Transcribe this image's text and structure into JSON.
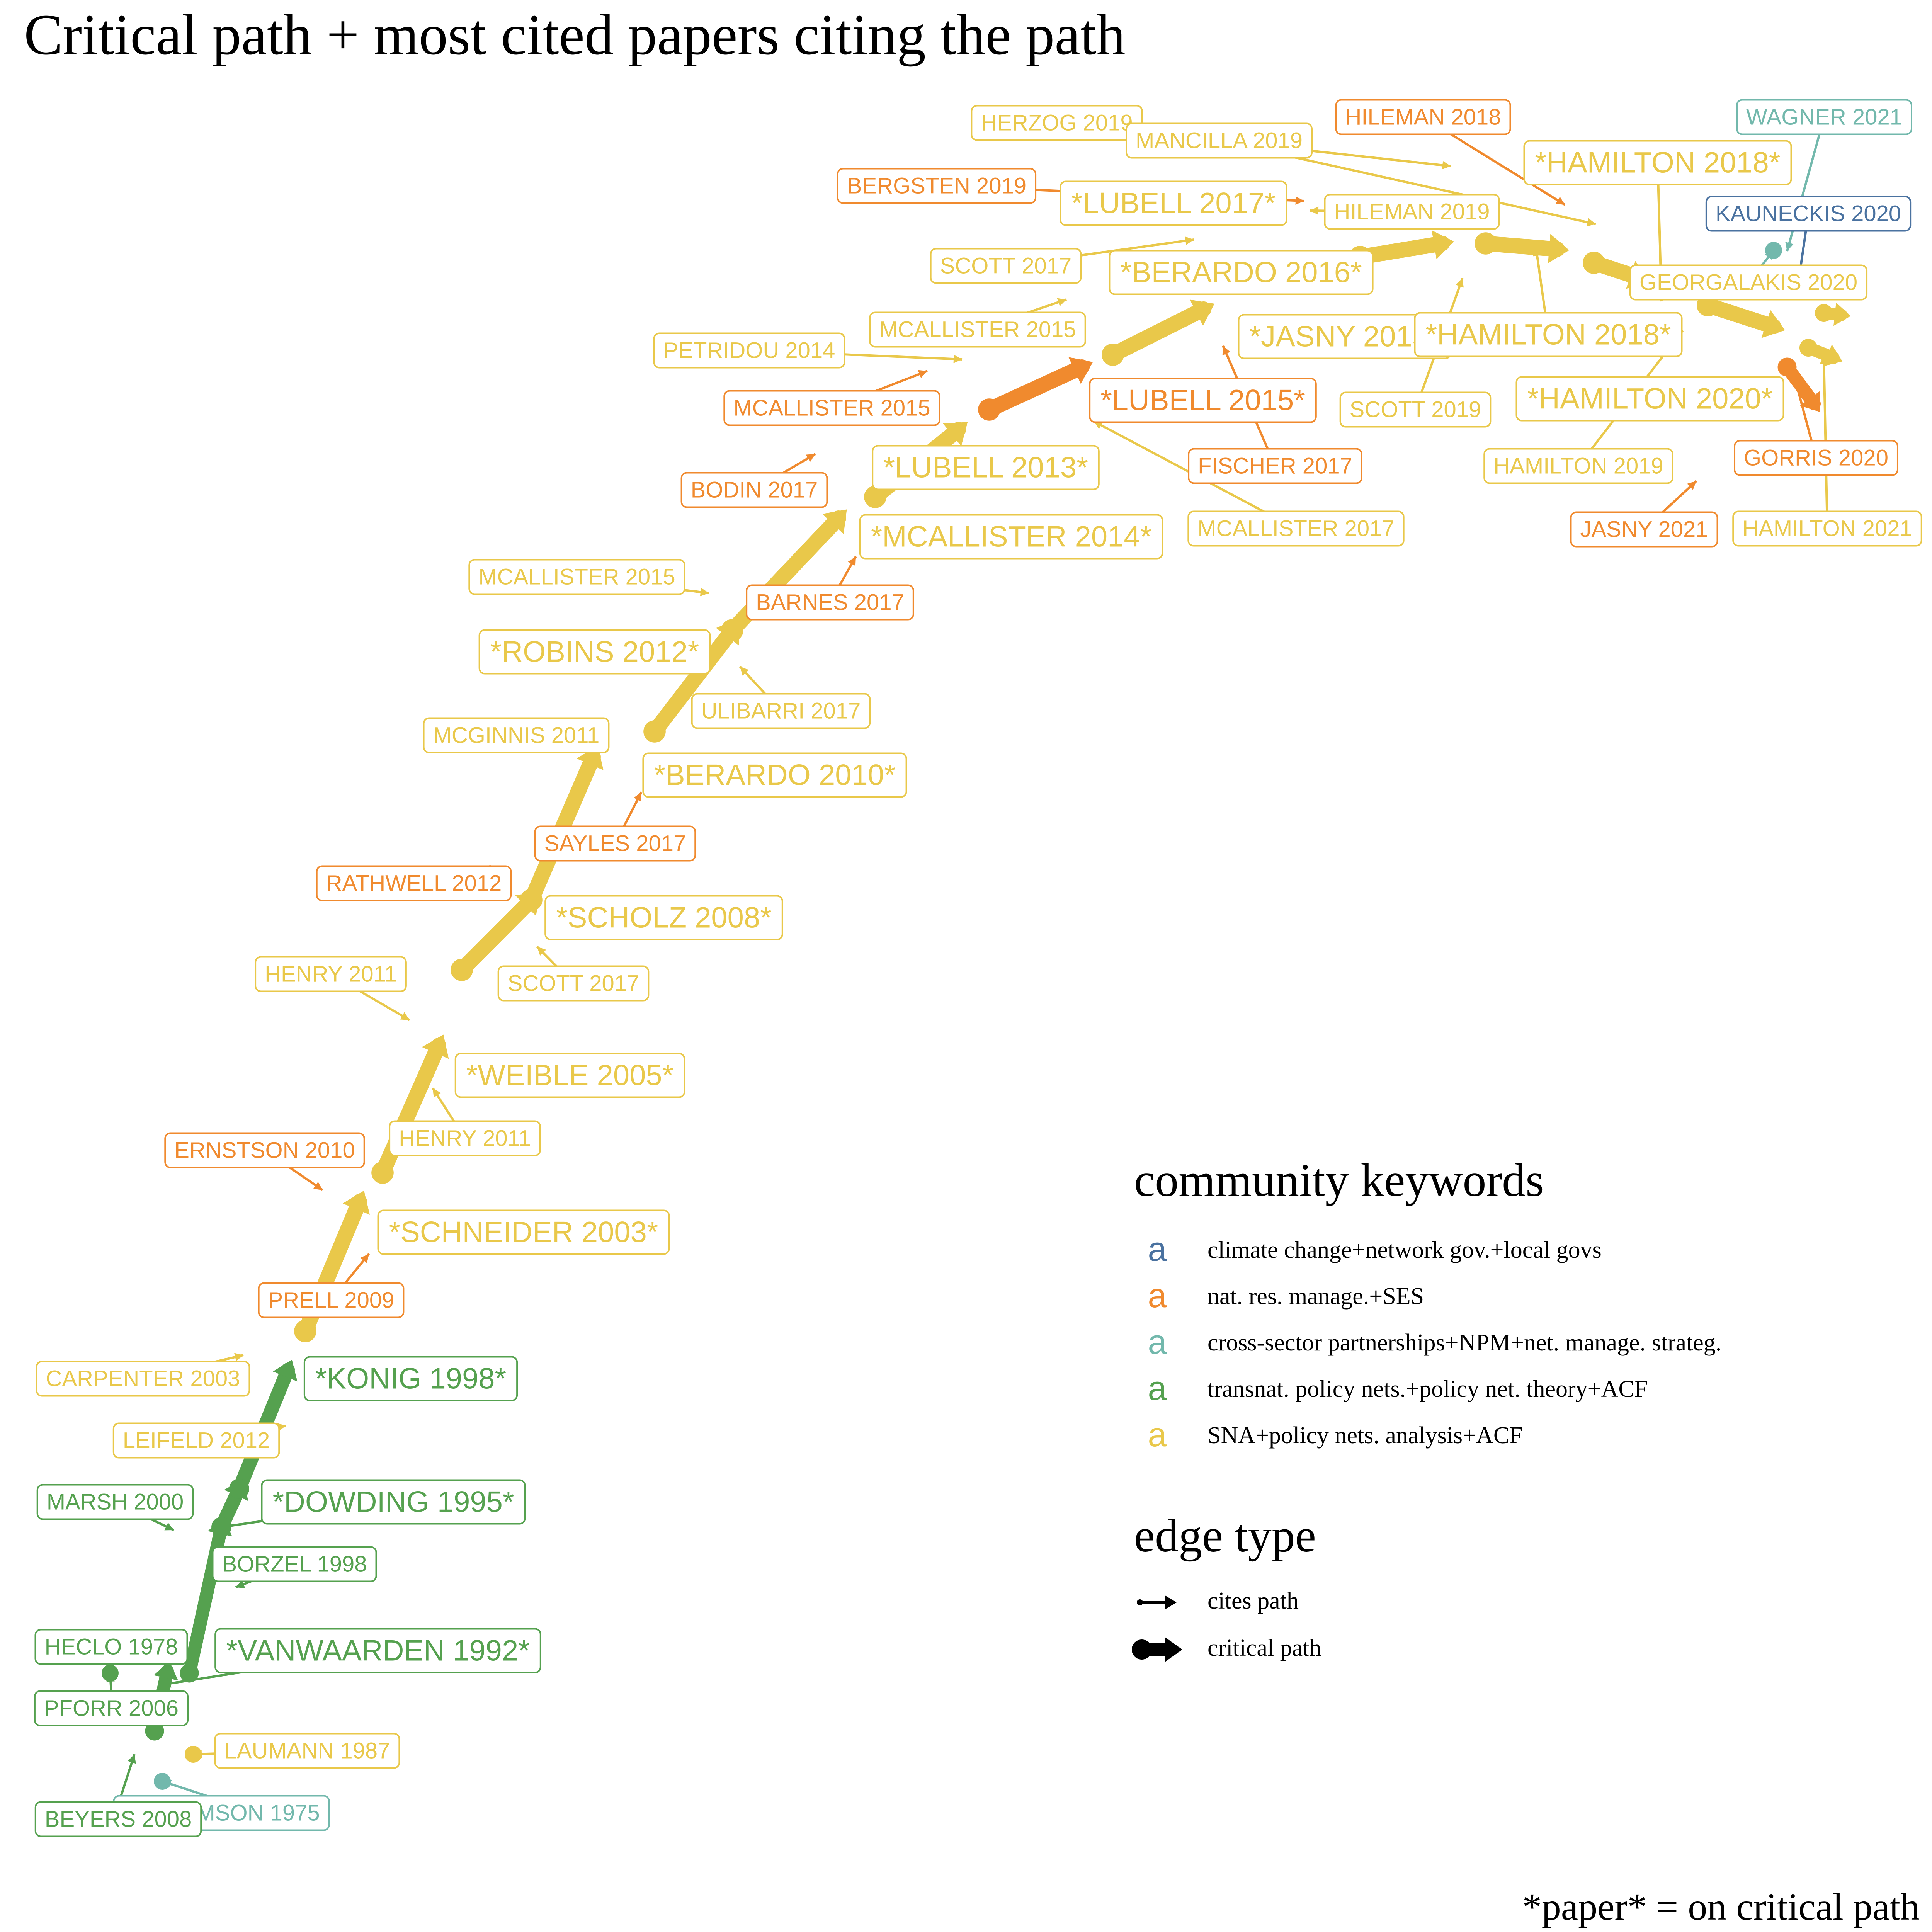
{
  "title": "Critical path + most cited papers citing the path",
  "footnote": "*paper* = on critical path",
  "colors": {
    "climate": "#4a72a0",
    "natres": "#f08a2e",
    "cross": "#72b8ac",
    "transnat": "#55a14f",
    "sna": "#e9c84a"
  },
  "legend": {
    "community_title": "community keywords",
    "community_items": [
      {
        "glyph": "a",
        "label": "climate change+network gov.+local govs",
        "color": "climate"
      },
      {
        "glyph": "a",
        "label": "nat. res. manage.+SES",
        "color": "natres"
      },
      {
        "glyph": "a",
        "label": "cross-sector partnerships+NPM+net. manage. strateg.",
        "color": "cross"
      },
      {
        "glyph": "a",
        "label": "transnat. policy nets.+policy net. theory+ACF",
        "color": "transnat"
      },
      {
        "glyph": "a",
        "label": "SNA+policy nets. analysis+ACF",
        "color": "sna"
      }
    ],
    "edge_title": "edge type",
    "edge_items": [
      {
        "label": "cites path",
        "type": "cites"
      },
      {
        "label": "critical path",
        "type": "critical"
      }
    ]
  },
  "nodes": [
    {
      "id": "williamson1975",
      "label": "WILLIAMSON 1975",
      "community": "cross",
      "critical": false
    },
    {
      "id": "beyers2008",
      "label": "BEYERS 2008",
      "community": "transnat",
      "critical": false
    },
    {
      "id": "laumann1987",
      "label": "LAUMANN 1987",
      "community": "sna",
      "critical": false
    },
    {
      "id": "pforr2006",
      "label": "PFORR 2006",
      "community": "transnat",
      "critical": false
    },
    {
      "id": "heclo1978",
      "label": "HECLO 1978",
      "community": "transnat",
      "critical": false
    },
    {
      "id": "vanwaarden1992",
      "label": "*VANWAARDEN 1992*",
      "community": "transnat",
      "critical": true
    },
    {
      "id": "borzel1998",
      "label": "BORZEL 1998",
      "community": "transnat",
      "critical": false
    },
    {
      "id": "marsh2000",
      "label": "MARSH 2000",
      "community": "transnat",
      "critical": false
    },
    {
      "id": "dowding1995",
      "label": "*DOWDING 1995*",
      "community": "transnat",
      "critical": true
    },
    {
      "id": "leifeld2012",
      "label": "LEIFELD 2012",
      "community": "sna",
      "critical": false
    },
    {
      "id": "carpenter2003",
      "label": "CARPENTER 2003",
      "community": "sna",
      "critical": false
    },
    {
      "id": "konig1998",
      "label": "*KONIG 1998*",
      "community": "transnat",
      "critical": true
    },
    {
      "id": "prell2009",
      "label": "PRELL 2009",
      "community": "natres",
      "critical": false
    },
    {
      "id": "schneider2003",
      "label": "*SCHNEIDER 2003*",
      "community": "sna",
      "critical": true
    },
    {
      "id": "ernstson2010",
      "label": "ERNSTSON 2010",
      "community": "natres",
      "critical": false
    },
    {
      "id": "henry2011b",
      "label": "HENRY 2011",
      "community": "sna",
      "critical": false
    },
    {
      "id": "weible2005",
      "label": "*WEIBLE 2005*",
      "community": "sna",
      "critical": true
    },
    {
      "id": "henry2011a",
      "label": "HENRY 2011",
      "community": "sna",
      "critical": false
    },
    {
      "id": "scott2017a",
      "label": "SCOTT 2017",
      "community": "sna",
      "critical": false
    },
    {
      "id": "scholz2008",
      "label": "*SCHOLZ 2008*",
      "community": "sna",
      "critical": true
    },
    {
      "id": "rathwell2012",
      "label": "RATHWELL 2012",
      "community": "natres",
      "critical": false
    },
    {
      "id": "sayles2017",
      "label": "SAYLES 2017",
      "community": "natres",
      "critical": false
    },
    {
      "id": "berardo2010",
      "label": "*BERARDO 2010*",
      "community": "sna",
      "critical": true
    },
    {
      "id": "mcginnis2011",
      "label": "MCGINNIS 2011",
      "community": "sna",
      "critical": false
    },
    {
      "id": "ulibarri2017",
      "label": "ULIBARRI 2017",
      "community": "sna",
      "critical": false
    },
    {
      "id": "robins2012",
      "label": "*ROBINS 2012*",
      "community": "sna",
      "critical": true
    },
    {
      "id": "barnes2017",
      "label": "BARNES 2017",
      "community": "natres",
      "critical": false
    },
    {
      "id": "mcallister2015c",
      "label": "MCALLISTER 2015",
      "community": "sna",
      "critical": false
    },
    {
      "id": "mcallister2014",
      "label": "*MCALLISTER 2014*",
      "community": "sna",
      "critical": true
    },
    {
      "id": "bodin2017",
      "label": "BODIN 2017",
      "community": "natres",
      "critical": false
    },
    {
      "id": "lubell2013",
      "label": "*LUBELL 2013*",
      "community": "sna",
      "critical": true
    },
    {
      "id": "mcallister2017",
      "label": "MCALLISTER 2017",
      "community": "sna",
      "critical": false
    },
    {
      "id": "mcallister2015b",
      "label": "MCALLISTER 2015",
      "community": "natres",
      "critical": false
    },
    {
      "id": "petridou2014",
      "label": "PETRIDOU 2014",
      "community": "sna",
      "critical": false
    },
    {
      "id": "mcallister2015a",
      "label": "MCALLISTER 2015",
      "community": "sna",
      "critical": false
    },
    {
      "id": "lubell2015",
      "label": "*LUBELL 2015*",
      "community": "natres",
      "critical": true
    },
    {
      "id": "fischer2017",
      "label": "FISCHER 2017",
      "community": "natres",
      "critical": false
    },
    {
      "id": "scott2017b",
      "label": "SCOTT 2017",
      "community": "sna",
      "critical": false
    },
    {
      "id": "berardo2016",
      "label": "*BERARDO 2016*",
      "community": "sna",
      "critical": true
    },
    {
      "id": "jasny2015",
      "label": "*JASNY 2015*",
      "community": "sna",
      "critical": true
    },
    {
      "id": "scott2019",
      "label": "SCOTT 2019",
      "community": "sna",
      "critical": false
    },
    {
      "id": "bergsten2019",
      "label": "BERGSTEN 2019",
      "community": "natres",
      "critical": false
    },
    {
      "id": "lubell2017",
      "label": "*LUBELL 2017*",
      "community": "sna",
      "critical": true
    },
    {
      "id": "herzog2019",
      "label": "HERZOG 2019",
      "community": "sna",
      "critical": false
    },
    {
      "id": "mancilla2019",
      "label": "MANCILLA 2019",
      "community": "sna",
      "critical": false
    },
    {
      "id": "hileman2019",
      "label": "HILEMAN 2019",
      "community": "sna",
      "critical": false
    },
    {
      "id": "hileman2018",
      "label": "HILEMAN 2018",
      "community": "natres",
      "critical": false
    },
    {
      "id": "hamilton2018a",
      "label": "*HAMILTON 2018*",
      "community": "sna",
      "critical": true
    },
    {
      "id": "hamilton2018b",
      "label": "*HAMILTON 2018*",
      "community": "sna",
      "critical": true
    },
    {
      "id": "hamilton2019",
      "label": "HAMILTON 2019",
      "community": "sna",
      "critical": false
    },
    {
      "id": "hamilton2020",
      "label": "*HAMILTON 2020*",
      "community": "sna",
      "critical": true
    },
    {
      "id": "georgalakis2020",
      "label": "GEORGALAKIS 2020",
      "community": "sna",
      "critical": false
    },
    {
      "id": "wagner2021",
      "label": "WAGNER 2021",
      "community": "cross",
      "critical": false
    },
    {
      "id": "kauneckis2020",
      "label": "KAUNECKIS 2020",
      "community": "climate",
      "critical": false
    },
    {
      "id": "gorris2020",
      "label": "GORRIS 2020",
      "community": "natres",
      "critical": false
    },
    {
      "id": "jasny2021",
      "label": "JASNY 2021",
      "community": "natres",
      "critical": false
    },
    {
      "id": "hamilton2021",
      "label": "HAMILTON 2021",
      "community": "sna",
      "critical": false
    }
  ]
}
